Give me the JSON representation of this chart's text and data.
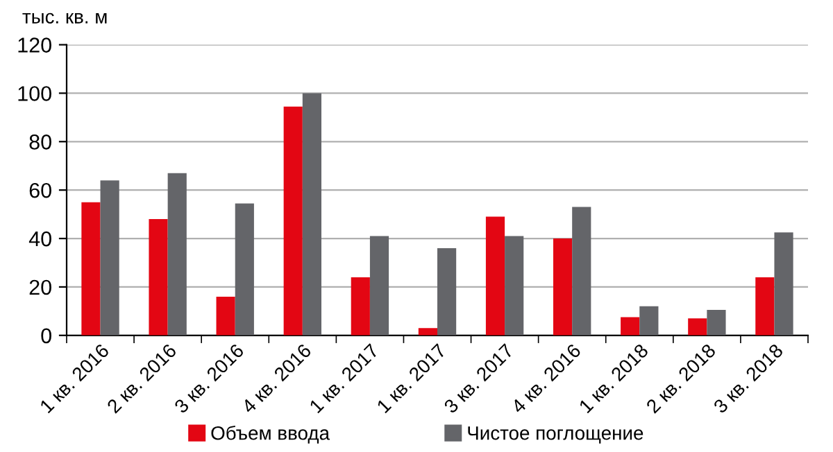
{
  "chart_data": {
    "type": "bar",
    "ylabel": "тыс. кв. м",
    "categories": [
      "1 кв. 2016",
      "2 кв. 2016",
      "3 кв. 2016",
      "4 кв. 2016",
      "1 кв. 2017",
      "1 кв. 2017",
      "3 кв. 2017",
      "4 кв. 2016",
      "1 кв. 2018",
      "2 кв. 2018",
      "3 кв. 2018"
    ],
    "series": [
      {
        "name": "Объем ввода",
        "color": "#e30613",
        "values": [
          55,
          48,
          16,
          94.5,
          24,
          3,
          49,
          40,
          7.5,
          7,
          24
        ]
      },
      {
        "name": "Чистое поглощение",
        "color": "#646569",
        "values": [
          64,
          67,
          54.5,
          100,
          41,
          36,
          41,
          53,
          12,
          10.5,
          42.5
        ]
      }
    ],
    "ylim": [
      0,
      120
    ],
    "yticks": [
      0,
      20,
      40,
      60,
      80,
      100,
      120
    ],
    "grid": "y",
    "legend": "bottom"
  }
}
